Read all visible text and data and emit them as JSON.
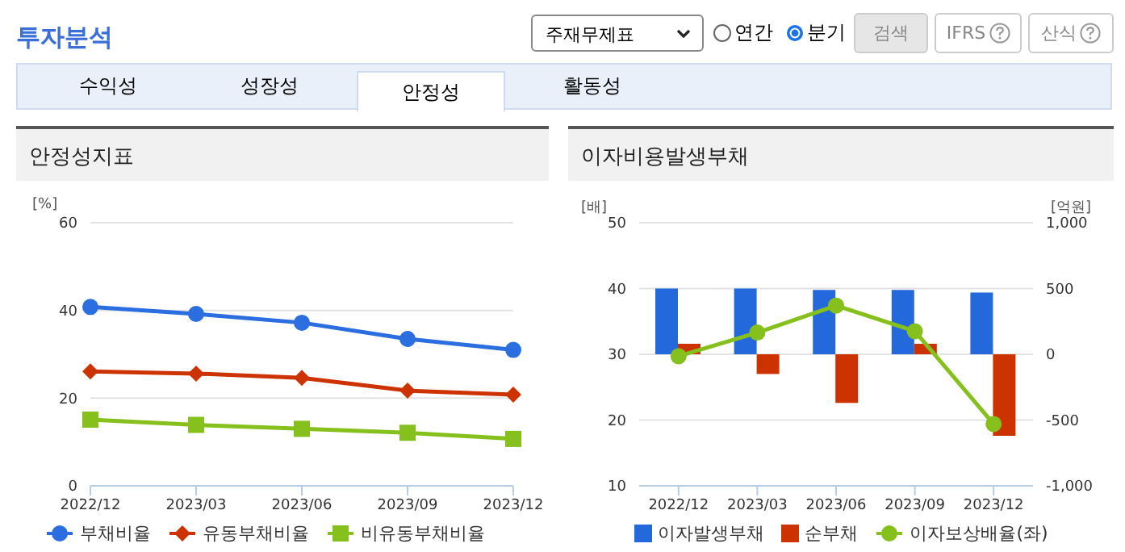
{
  "chart_data": [
    {
      "type": "line",
      "title": "안정성지표",
      "ylabel": "[%]",
      "annotations": [
        "투자분석",
        "주재무제표",
        "연간",
        "분기",
        "검색",
        "IFRS",
        "산식",
        "수익성",
        "성장성",
        "안정성",
        "활동성"
      ],
      "categories": [
        "2022/12",
        "2023/03",
        "2023/06",
        "2023/09",
        "2023/12"
      ],
      "series": [
        {
          "name": "부채비율",
          "color": "#2b6ee0",
          "marker": "circle",
          "values": [
            40.8,
            39.2,
            37.2,
            33.5,
            31.0
          ]
        },
        {
          "name": "유동부채비율",
          "color": "#cc3300",
          "marker": "diamond",
          "values": [
            26.1,
            25.6,
            24.6,
            21.7,
            20.8
          ]
        },
        {
          "name": "비유동부채비율",
          "color": "#86c01c",
          "marker": "square",
          "values": [
            15.1,
            13.9,
            13.0,
            12.1,
            10.7
          ]
        }
      ],
      "ylim": [
        0,
        60
      ],
      "yticks": [
        0,
        20,
        40,
        60
      ],
      "grid": "y",
      "legend": "bottom"
    },
    {
      "type": "bar",
      "title": "이자비용발생부채",
      "ylabel": "[배]",
      "y2label": "[억원]",
      "categories": [
        "2022/12",
        "2023/03",
        "2023/06",
        "2023/09",
        "2023/12"
      ],
      "series": [
        {
          "name": "이자발생부채",
          "color": "#2369db",
          "axis": "y2",
          "values": [
            500,
            500,
            490,
            490,
            470
          ]
        },
        {
          "name": "순부채",
          "color": "#cc3300",
          "axis": "y2",
          "values": [
            80,
            -150,
            -370,
            80,
            -620
          ]
        },
        {
          "name": "이자보상배율(좌)",
          "type": "line",
          "color": "#86c01c",
          "axis": "y",
          "marker": "circle",
          "values": [
            29.7,
            33.3,
            37.4,
            33.5,
            19.4
          ]
        }
      ],
      "ylim": [
        10,
        50
      ],
      "yticks": [
        10,
        20,
        30,
        40,
        50
      ],
      "y2lim": [
        -1000,
        1000
      ],
      "y2ticks": [
        {
          "value": -1000,
          "label": "-1,000"
        },
        -500,
        0,
        500,
        {
          "value": 1000,
          "label": "1,000"
        }
      ],
      "grid": "y",
      "legend": "bottom"
    }
  ]
}
